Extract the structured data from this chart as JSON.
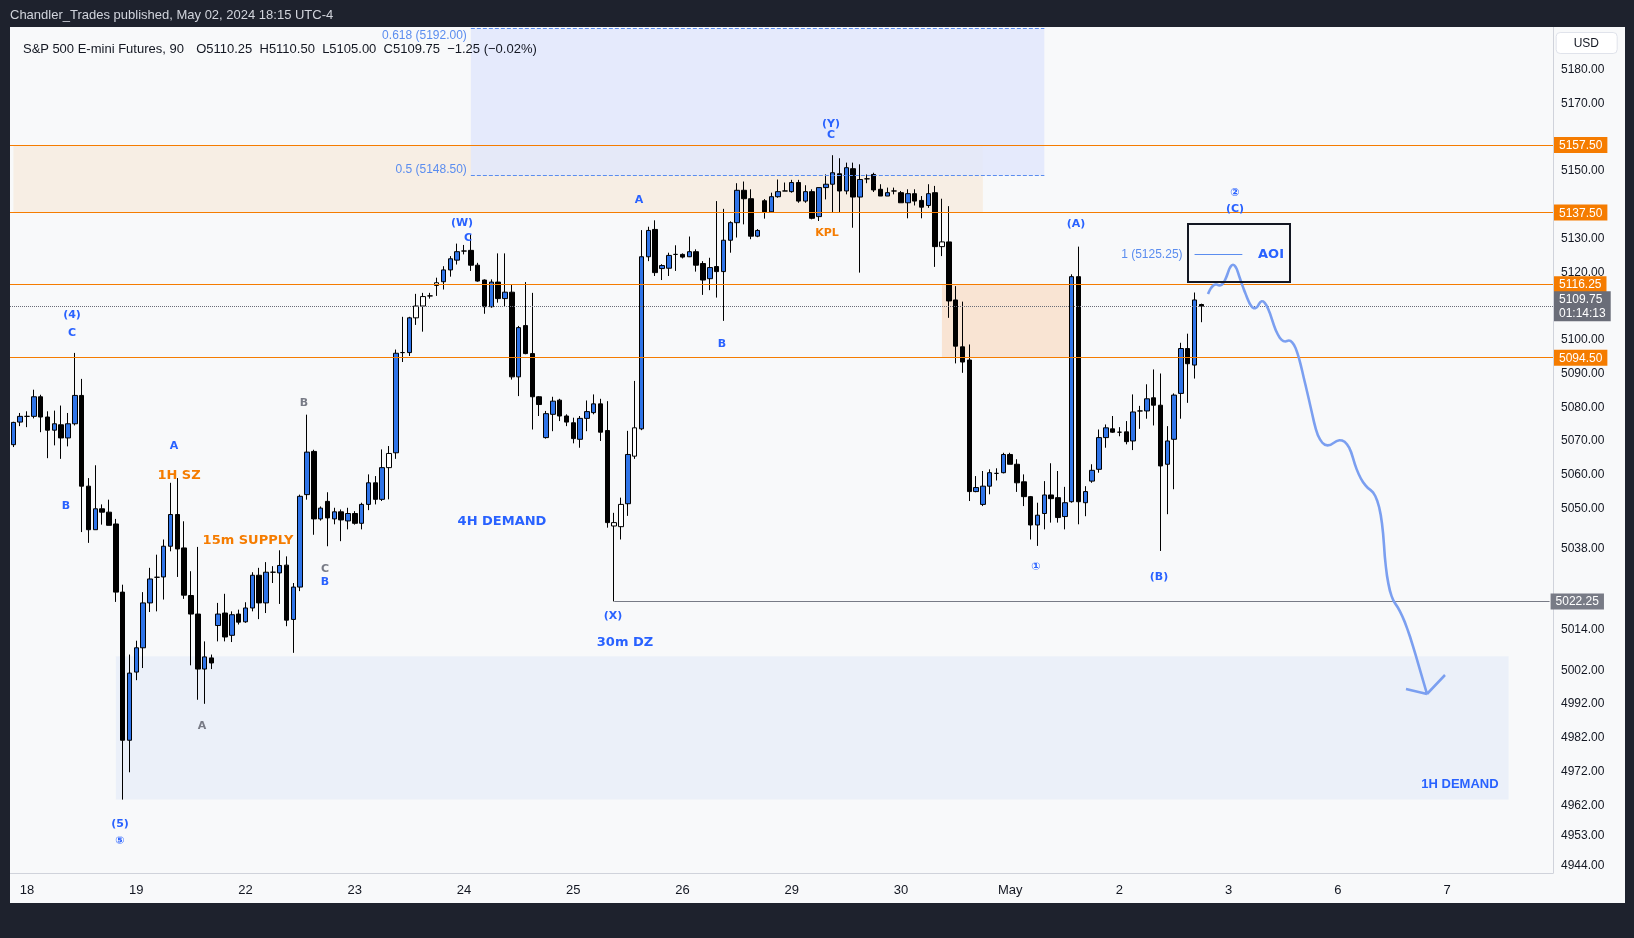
{
  "chart_data": {
    "type": "candlestick",
    "title": "S&P 500 E-mini Futures, 90",
    "subtitle": "O5110.25  H5110.50  L5105.00  C5109.75  −1.25 (−0.02%)",
    "ylabel": "USD",
    "annotations": [
      "Chandler_Trades published, May 02, 2024 18:15 UTC-4",
      "(4)",
      "C",
      "B",
      "A",
      "1H SZ",
      "15m SUPPLY",
      "B",
      "C",
      "B",
      "A",
      "(5)",
      "⑤",
      "(W)",
      "C",
      "4H DEMAND",
      "(X)",
      "30m DZ",
      "A",
      "B",
      "(Y)",
      "C",
      "KPL",
      "(A)",
      "①",
      "(B)",
      "②",
      "(C)",
      "AOI"
    ],
    "categories": [
      null,
      null,
      "18",
      null,
      null,
      null,
      null,
      null,
      null,
      null,
      null,
      null,
      null,
      null,
      null,
      null,
      null,
      null,
      "19",
      null,
      null,
      null,
      null,
      null,
      null,
      null,
      null,
      null,
      null,
      null,
      null,
      null,
      null,
      null,
      "22",
      null,
      null,
      null,
      null,
      null,
      null,
      null,
      null,
      null,
      null,
      null,
      null,
      null,
      null,
      null,
      "23",
      null,
      null,
      null,
      null,
      null,
      null,
      null,
      null,
      null,
      null,
      null,
      null,
      null,
      null,
      null,
      "24",
      null,
      null,
      null,
      null,
      null,
      null,
      null,
      null,
      null,
      null,
      null,
      null,
      null,
      null,
      null,
      "25",
      null,
      null,
      null,
      null,
      null,
      null,
      null,
      null,
      null,
      null,
      null,
      null,
      null,
      null,
      null,
      "26",
      null,
      null,
      null,
      null,
      null,
      null,
      null,
      null,
      null,
      null,
      null,
      null,
      null,
      null,
      null,
      "29",
      null,
      null,
      null,
      null,
      null,
      null,
      null,
      null,
      null,
      null,
      null,
      null,
      null,
      null,
      null,
      "30",
      null,
      null,
      null,
      null,
      null,
      null,
      null,
      null,
      null,
      null,
      null,
      null,
      null,
      null,
      null,
      "May",
      null,
      null,
      null,
      null,
      null,
      null,
      null,
      null,
      null,
      null,
      null,
      null,
      null,
      null,
      null,
      "2",
      null,
      null,
      null,
      null,
      null,
      null,
      null,
      null,
      null,
      null,
      null,
      null,
      null,
      null,
      null,
      "3",
      null,
      null,
      null,
      null,
      null,
      null,
      null,
      null,
      null,
      null,
      null,
      null,
      null,
      null,
      null,
      "6",
      null,
      null,
      null,
      null,
      null,
      null,
      null,
      null,
      null,
      null,
      null,
      null,
      null,
      null,
      null,
      "7",
      null,
      null,
      null,
      null,
      null,
      null,
      null,
      null,
      null,
      null,
      null,
      null,
      null,
      null,
      null
    ],
    "ylim": [
      4941.75,
      5192.5
    ],
    "yticks": [
      {
        "value": 4944,
        "label": "4944.00"
      },
      {
        "value": 4953,
        "label": "4953.00"
      },
      {
        "value": 4962,
        "label": "4962.00"
      },
      {
        "value": 4972,
        "label": "4972.00"
      },
      {
        "value": 4982,
        "label": "4982.00"
      },
      {
        "value": 4992,
        "label": "4992.00"
      },
      {
        "value": 5002,
        "label": "5002.00"
      },
      {
        "value": 5014,
        "label": "5014.00"
      },
      {
        "value": 5038,
        "label": "5038.00"
      },
      {
        "value": 5050,
        "label": "5050.00"
      },
      {
        "value": 5060,
        "label": "5060.00"
      },
      {
        "value": 5070,
        "label": "5070.00"
      },
      {
        "value": 5080,
        "label": "5080.00"
      },
      {
        "value": 5090,
        "label": "5090.00"
      },
      {
        "value": 5100,
        "label": "5100.00"
      },
      {
        "value": 5120,
        "label": "5120.00"
      },
      {
        "value": 5130,
        "label": "5130.00"
      },
      {
        "value": 5150,
        "label": "5150.00"
      },
      {
        "value": 5170,
        "label": "5170.00"
      },
      {
        "value": 5180,
        "label": "5180.00"
      }
    ],
    "bands": [
      {
        "axis": "y",
        "from": 4963.5,
        "to": 5006,
        "label": "1H DEMAND",
        "color": "#e9eef8"
      },
      {
        "axis": "y",
        "from": 5137.5,
        "to": 5157.5,
        "color": "#f7ecdf"
      },
      {
        "axis": "y",
        "from": 5148.5,
        "to": 5192,
        "color": "#e2e8fb"
      },
      {
        "axis": "y",
        "from": 5094.5,
        "to": 5116.25,
        "color": "#f9e1cb"
      }
    ],
    "ref_lines": [
      {
        "axis": "y",
        "value": 5192,
        "label": "0.618 (5192.00)",
        "color": "#5b8def",
        "line_style": "dashed"
      },
      {
        "axis": "y",
        "value": 5148.5,
        "label": "0.5 (5148.50)",
        "color": "#5b8def",
        "line_style": "dashed"
      },
      {
        "axis": "y",
        "value": 5125.25,
        "label": "1 (5125.25)",
        "color": "#5b8def",
        "line_style": "solid"
      },
      {
        "axis": "y",
        "value": 5157.5,
        "label": "5157.50",
        "color": "#f57c00",
        "line_style": "solid"
      },
      {
        "axis": "y",
        "value": 5137.5,
        "label": "5137.50",
        "color": "#f57c00",
        "line_style": "solid"
      },
      {
        "axis": "y",
        "value": 5116.25,
        "label": "5116.25",
        "color": "#f57c00",
        "line_style": "solid"
      },
      {
        "axis": "y",
        "value": 5094.5,
        "label": "5094.50",
        "color": "#f57c00",
        "line_style": "solid"
      },
      {
        "axis": "y",
        "value": 5109.75,
        "label": "5109.75\n01:14:13",
        "color": "#6a6d78",
        "line_style": "dotted"
      },
      {
        "axis": "y",
        "value": 5022.25,
        "label": "5022.25",
        "color": "#787b86",
        "line_style": "solid"
      }
    ],
    "series": [
      {
        "ohlc": [
          [
            5068.7,
            5075.5,
            5068,
            5075.3
          ],
          [
            5075.4,
            5078.1,
            5074.2,
            5077.1
          ],
          [
            5077.1,
            5078.6,
            5073.9,
            5077.1
          ],
          [
            5077.1,
            5085,
            5076.5,
            5082.9
          ],
          [
            5082.9,
            5083.5,
            5072.4,
            5076.9
          ],
          [
            5076.9,
            5078.6,
            5064.7,
            5073
          ],
          [
            5073,
            5078.8,
            5068.5,
            5074.9
          ],
          [
            5074.6,
            5080.3,
            5064.5,
            5070.7
          ],
          [
            5070.7,
            5078.1,
            5068.2,
            5074.9
          ],
          [
            5074.9,
            5095.9,
            5074.4,
            5083.3
          ],
          [
            5083.3,
            5088.2,
            5042.8,
            5056.4
          ],
          [
            5056.4,
            5058.8,
            5039.6,
            5043.5
          ],
          [
            5043.5,
            5062.6,
            5043.5,
            5049.7
          ],
          [
            5049.7,
            5051,
            5045,
            5048.7
          ],
          [
            5048.7,
            5052.4,
            5044.8,
            5044.8
          ],
          [
            5045.2,
            5046.7,
            5022.1,
            5025
          ],
          [
            5025,
            5027.2,
            4963.5,
            4981.1
          ],
          [
            4981.1,
            5006.5,
            4971.6,
            5001
          ],
          [
            5001.3,
            5010.6,
            4998.9,
            5008.5
          ],
          [
            5008.5,
            5025,
            5002.5,
            5021.8
          ],
          [
            5021.8,
            5032.2,
            5019.1,
            5028.9
          ],
          [
            5029.4,
            5036.1,
            5019.3,
            5029.4
          ],
          [
            5029.5,
            5040.6,
            5022.8,
            5038.6
          ],
          [
            5038.6,
            5057.4,
            5037.1,
            5048
          ],
          [
            5048,
            5058.8,
            5029.5,
            5037.8
          ],
          [
            5038.1,
            5046,
            5023,
            5024.1
          ],
          [
            5024,
            5031.2,
            5003.3,
            5018.5
          ],
          [
            5018.5,
            5038.4,
            4993.1,
            5002.2
          ],
          [
            5002.2,
            5010.4,
            4991.9,
            5005.8
          ],
          [
            5005.5,
            5006.5,
            5002.2,
            5004
          ],
          [
            5015.1,
            5021.8,
            5010.4,
            5018.5
          ],
          [
            5018.8,
            5024.5,
            5010.4,
            5011.7
          ],
          [
            5012.2,
            5019.3,
            5010.2,
            5018.3
          ],
          [
            5018.5,
            5019.8,
            5015.4,
            5016.1
          ],
          [
            5016.2,
            5022,
            5015.9,
            5020.3
          ],
          [
            5020.3,
            5030.9,
            5019.3,
            5030
          ],
          [
            5030,
            5032.2,
            5017,
            5021.8
          ],
          [
            5021.8,
            5033.9,
            5018.8,
            5030.9
          ],
          [
            5030.9,
            5032.7,
            5027.7,
            5030.9
          ],
          [
            5030.7,
            5037.4,
            5021.5,
            5032.9
          ],
          [
            5033,
            5035.6,
            5014.9,
            5016.7
          ],
          [
            5016.9,
            5027.7,
            5007,
            5026.5
          ],
          [
            5026.5,
            5053.9,
            5025.3,
            5053.4
          ],
          [
            5053.9,
            5077.6,
            5052.4,
            5066.5
          ],
          [
            5066.7,
            5067.2,
            5042,
            5046.7
          ],
          [
            5046.7,
            5050.4,
            5046.2,
            5049.9
          ],
          [
            5051.9,
            5054.6,
            5038.6,
            5047
          ],
          [
            5046.7,
            5050,
            5045.1,
            5048.8
          ],
          [
            5048.8,
            5049.5,
            5040.1,
            5046.4
          ],
          [
            5046.1,
            5050,
            5043.6,
            5048.3
          ],
          [
            5048.3,
            5049,
            5045,
            5045.4
          ],
          [
            5045.4,
            5051.5,
            5043.6,
            5051
          ],
          [
            5051,
            5059.9,
            5049.3,
            5057.4
          ],
          [
            5057.4,
            5059.4,
            5051,
            5052.5
          ],
          [
            5052.5,
            5067.3,
            5052,
            5061.9
          ],
          [
            5061.9,
            5068.3,
            5052.5,
            5066.1
          ],
          [
            5066.3,
            5096.9,
            5064.5,
            5095.8
          ],
          [
            5096,
            5106.6,
            5093.2,
            5096
          ],
          [
            5096,
            5106.6,
            5095,
            5106.3
          ],
          [
            5106.3,
            5113.4,
            5104.2,
            5109.8
          ],
          [
            5109.8,
            5113.7,
            5102.2,
            5112.6
          ],
          [
            5112.8,
            5113.7,
            5112,
            5112.8
          ],
          [
            5115.9,
            5118.2,
            5112.8,
            5116.7
          ],
          [
            5117,
            5121.6,
            5114.7,
            5120.5
          ],
          [
            5120.5,
            5124.6,
            5118.5,
            5123.8
          ],
          [
            5123.4,
            5128.3,
            5122.1,
            5125.9
          ],
          [
            5126.1,
            5127.9,
            5125.1,
            5126.1
          ],
          [
            5126.3,
            5131,
            5120.2,
            5121.9
          ],
          [
            5121.9,
            5122.6,
            5117,
            5117.2
          ],
          [
            5117.5,
            5117.7,
            5107.5,
            5109.6
          ],
          [
            5109.6,
            5117.7,
            5109.3,
            5116.9
          ],
          [
            5116.9,
            5125.4,
            5110.8,
            5112
          ],
          [
            5112,
            5125.4,
            5109.8,
            5113.9
          ],
          [
            5113.9,
            5116.2,
            5088,
            5088.8
          ],
          [
            5088.8,
            5103.9,
            5083.1,
            5103.4
          ],
          [
            5104,
            5116.9,
            5095.5,
            5095.7
          ],
          [
            5095.7,
            5113.7,
            5073.2,
            5082.9
          ],
          [
            5082.9,
            5083.1,
            5077.2,
            5080.6
          ],
          [
            5070.8,
            5078.7,
            5070.5,
            5077.9
          ],
          [
            5077.7,
            5082.9,
            5072.7,
            5081.6
          ],
          [
            5081.9,
            5082.3,
            5075.7,
            5077.2
          ],
          [
            5077.2,
            5077.7,
            5074.2,
            5075.4
          ],
          [
            5075.2,
            5076.7,
            5069.1,
            5070.5
          ],
          [
            5070.3,
            5077.2,
            5067.8,
            5076.5
          ],
          [
            5076.5,
            5081.8,
            5072.7,
            5078.5
          ],
          [
            5078.2,
            5083.6,
            5077.7,
            5080.8
          ],
          [
            5080.8,
            5082.3,
            5069.8,
            5072.4
          ],
          [
            5072.9,
            5081.6,
            5044.1,
            5045.6
          ],
          [
            5044.6,
            5048.5,
            5022.25,
            5045.6
          ],
          [
            5044.4,
            5053,
            5040.6,
            5051
          ],
          [
            5051.2,
            5072.8,
            5047.6,
            5065.8
          ],
          [
            5065.3,
            5087.6,
            5064.5,
            5073.7
          ],
          [
            5073.4,
            5132.3,
            5073,
            5124.4
          ],
          [
            5124.4,
            5133.3,
            5123.1,
            5132.2
          ],
          [
            5132.5,
            5135.2,
            5118.7,
            5119.7
          ],
          [
            5120.9,
            5122.2,
            5117.5,
            5121.8
          ],
          [
            5121,
            5125.6,
            5118.7,
            5124.8
          ],
          [
            5125.1,
            5127.8,
            5120.2,
            5125.1
          ],
          [
            5125.1,
            5125.4,
            5123.9,
            5124.3
          ],
          [
            5124.4,
            5130.4,
            5124.3,
            5125.9
          ],
          [
            5125.9,
            5126.6,
            5120,
            5121.9
          ],
          [
            5122.4,
            5123.1,
            5113.1,
            5117.5
          ],
          [
            5117.9,
            5124.1,
            5114.5,
            5121.2
          ],
          [
            5121.5,
            5140.9,
            5112.3,
            5120
          ],
          [
            5120,
            5138.6,
            5105.4,
            5129.3
          ],
          [
            5129.3,
            5134.9,
            5125.6,
            5134.5
          ],
          [
            5134.5,
            5146.2,
            5130.1,
            5144.1
          ],
          [
            5144.1,
            5146.7,
            5134,
            5141.6
          ],
          [
            5141.6,
            5144.4,
            5129.6,
            5130.5
          ],
          [
            5130.5,
            5132.6,
            5130.2,
            5132.2
          ],
          [
            5141,
            5141.5,
            5135.7,
            5137.7
          ],
          [
            5137.7,
            5143.4,
            5137.6,
            5142.2
          ],
          [
            5142.2,
            5147.3,
            5141.9,
            5143.7
          ],
          [
            5143.9,
            5146.4,
            5143.9,
            5143.9
          ],
          [
            5143.7,
            5147.2,
            5143.4,
            5146.4
          ],
          [
            5146.4,
            5147.2,
            5140.4,
            5140.9
          ],
          [
            5140.9,
            5145.6,
            5140.4,
            5143.7
          ],
          [
            5143.7,
            5144.4,
            5135.5,
            5135.8
          ],
          [
            5136.3,
            5144.9,
            5135,
            5144.9
          ],
          [
            5144.9,
            5148.8,
            5141.4,
            5145.9
          ],
          [
            5145.9,
            5154.5,
            5137.5,
            5149.3
          ],
          [
            5149,
            5153.6,
            5137.5,
            5143.9
          ],
          [
            5143.9,
            5152.3,
            5142.9,
            5150.8
          ],
          [
            5150.5,
            5152.3,
            5133,
            5142.1
          ],
          [
            5142.1,
            5151.8,
            5119.7,
            5147.3
          ],
          [
            5147.5,
            5148.8,
            5146.2,
            5147.5
          ],
          [
            5148.8,
            5149.3,
            5143.6,
            5144.2
          ],
          [
            5144.4,
            5145.9,
            5142.4,
            5142.4
          ],
          [
            5142.4,
            5144.9,
            5142.4,
            5143.4
          ],
          [
            5143.9,
            5144.9,
            5142.9,
            5143.9
          ],
          [
            5143.4,
            5143.9,
            5140.4,
            5140.4
          ],
          [
            5140.4,
            5144.4,
            5135.8,
            5143.1
          ],
          [
            5143.1,
            5144.4,
            5139.6,
            5140.9
          ],
          [
            5141.1,
            5142.4,
            5135.8,
            5139.1
          ],
          [
            5139.6,
            5145.9,
            5138.9,
            5143.1
          ],
          [
            5143.4,
            5145.4,
            5121.4,
            5127.4
          ],
          [
            5127.4,
            5141.6,
            5124.6,
            5128.8
          ],
          [
            5128.8,
            5139.4,
            5106.3,
            5111.3
          ],
          [
            5111.6,
            5115.7,
            5092.8,
            5097.9
          ],
          [
            5097.7,
            5111.1,
            5090,
            5093.2
          ],
          [
            5093.8,
            5098.4,
            5052,
            5054.8
          ],
          [
            5054.8,
            5059.4,
            5054.6,
            5056
          ],
          [
            5051,
            5060.9,
            5050.5,
            5056.4
          ],
          [
            5056.4,
            5061.4,
            5054,
            5060.4
          ],
          [
            5060.2,
            5061.7,
            5058.1,
            5060.2
          ],
          [
            5060.4,
            5066.3,
            5060.2,
            5065.8
          ],
          [
            5065.8,
            5066.3,
            5062.9,
            5062.9
          ],
          [
            5062.9,
            5064.4,
            5054.7,
            5057.4
          ],
          [
            5057.7,
            5059.9,
            5050.5,
            5053.3
          ],
          [
            5053.3,
            5053.5,
            5040.6,
            5044.9
          ],
          [
            5044.9,
            5051.5,
            5038.7,
            5047.8
          ],
          [
            5048.3,
            5057.9,
            5043.6,
            5053.8
          ],
          [
            5053.8,
            5063.2,
            5045.6,
            5052.7
          ],
          [
            5053,
            5060.9,
            5045.6,
            5047.1
          ],
          [
            5047.4,
            5056.2,
            5043.6,
            5051.5
          ],
          [
            5051.8,
            5119.2,
            5051.5,
            5118.5
          ],
          [
            5118.5,
            5127.4,
            5045.1,
            5051.8
          ],
          [
            5051.5,
            5056.4,
            5047.5,
            5054.8
          ],
          [
            5057.9,
            5062.9,
            5057.4,
            5061.1
          ],
          [
            5061.4,
            5073.2,
            5060.4,
            5070.8
          ],
          [
            5070.8,
            5074.7,
            5067.8,
            5073.7
          ],
          [
            5073.4,
            5077.2,
            5072.2,
            5072.4
          ],
          [
            5072.4,
            5073.9,
            5071.2,
            5072.4
          ],
          [
            5072.5,
            5075.7,
            5068.8,
            5069.6
          ],
          [
            5069.8,
            5083.6,
            5067.1,
            5078.4
          ],
          [
            5078.7,
            5080.2,
            5073.4,
            5078.7
          ],
          [
            5078.7,
            5086.6,
            5076.4,
            5082.3
          ],
          [
            5082.6,
            5091,
            5074.4,
            5080.4
          ],
          [
            5080.4,
            5089.8,
            5037.2,
            5062.4
          ],
          [
            5062.9,
            5074.2,
            5048.1,
            5069.8
          ],
          [
            5070.3,
            5083.9,
            5055.5,
            5083.4
          ],
          [
            5083.9,
            5098.9,
            5076.4,
            5097.2
          ],
          [
            5097.2,
            5101.6,
            5081.1,
            5092.7
          ],
          [
            5092.3,
            5113.8,
            5088.3,
            5111.6
          ],
          [
            5110.25,
            5110.5,
            5105,
            5109.75
          ],
          null,
          null,
          null,
          null,
          null,
          null,
          null,
          null,
          null,
          null,
          null,
          null,
          null,
          null,
          null,
          null,
          null,
          null,
          null,
          null,
          null,
          null,
          null,
          null,
          null,
          null,
          null,
          null,
          null,
          null,
          null,
          null,
          null,
          null,
          null,
          null,
          null,
          null,
          null,
          null,
          null,
          null,
          null,
          null,
          null,
          null,
          null,
          null,
          null,
          null,
          null
        ],
        "colors": [
          "#2f74e8",
          "#2f74e8",
          "#000000",
          "#2f74e8",
          "#000000",
          "#000000",
          "#2f74e8",
          "#000000",
          "#2f74e8",
          "#2f74e8",
          "#000000",
          "#000000",
          "#2f74e8",
          "#000000",
          "#000000",
          "#000000",
          "#000000",
          "#2f74e8",
          "#2f74e8",
          "#2f74e8",
          "#2f74e8",
          "#000000",
          "#2f74e8",
          "#2f74e8",
          "#000000",
          "#000000",
          "#000000",
          "#000000",
          "#2f74e8",
          "#000000",
          "#2f74e8",
          "#000000",
          "#2f74e8",
          "#000000",
          "#2f74e8",
          "#2f74e8",
          "#000000",
          "#2f74e8",
          "#000000",
          "#2f74e8",
          "#000000",
          "#2f74e8",
          "#2f74e8",
          "#2f74e8",
          "#000000",
          "#2f74e8",
          "#000000",
          "#2f74e8",
          "#000000",
          "#2f74e8",
          "#000000",
          "#2f74e8",
          "#2f74e8",
          "#000000",
          "#2f74e8",
          "#ffffff",
          "#2f74e8",
          "#000000",
          "#2f74e8",
          "#ffffff",
          "#ffffff",
          "#000000",
          "#ffffff",
          "#2f74e8",
          "#2f74e8",
          "#2f74e8",
          "#000000",
          "#000000",
          "#000000",
          "#000000",
          "#2f74e8",
          "#000000",
          "#2f74e8",
          "#000000",
          "#2f74e8",
          "#000000",
          "#000000",
          "#000000",
          "#2f74e8",
          "#2f74e8",
          "#000000",
          "#000000",
          "#000000",
          "#2f74e8",
          "#2f74e8",
          "#2f74e8",
          "#000000",
          "#000000",
          "#ffffff",
          "#ffffff",
          "#2f74e8",
          "#ffffff",
          "#2f74e8",
          "#2f74e8",
          "#000000",
          "#2f74e8",
          "#2f74e8",
          "#000000",
          "#000000",
          "#2f74e8",
          "#000000",
          "#000000",
          "#2f74e8",
          "#000000",
          "#2f74e8",
          "#2f74e8",
          "#2f74e8",
          "#000000",
          "#000000",
          "#2f74e8",
          "#000000",
          "#2f74e8",
          "#2f74e8",
          "#000000",
          "#2f74e8",
          "#000000",
          "#2f74e8",
          "#000000",
          "#2f74e8",
          "#2f74e8",
          "#2f74e8",
          "#000000",
          "#2f74e8",
          "#000000",
          "#2f74e8",
          "#000000",
          "#000000",
          "#000000",
          "#2f74e8",
          "#000000",
          "#000000",
          "#2f74e8",
          "#000000",
          "#000000",
          "#2f74e8",
          "#000000",
          "#ffffff",
          "#000000",
          "#000000",
          "#000000",
          "#000000",
          "#2f74e8",
          "#2f74e8",
          "#2f74e8",
          "#000000",
          "#2f74e8",
          "#000000",
          "#000000",
          "#000000",
          "#000000",
          "#2f74e8",
          "#2f74e8",
          "#000000",
          "#000000",
          "#2f74e8",
          "#2f74e8",
          "#000000",
          "#2f74e8",
          "#2f74e8",
          "#2f74e8",
          "#2f74e8",
          "#000000",
          "#000000",
          "#000000",
          "#2f74e8",
          "#000000",
          "#2f74e8",
          "#000000",
          "#000000",
          "#2f74e8",
          "#2f74e8",
          "#2f74e8",
          "#000000",
          "#2f74e8",
          "#000000",
          null,
          null,
          null,
          null,
          null,
          null,
          null,
          null,
          null,
          null,
          null,
          null,
          null,
          null,
          null,
          null,
          null,
          null,
          null,
          null,
          null,
          null,
          null,
          null,
          null,
          null,
          null,
          null,
          null,
          null,
          null,
          null,
          null,
          null,
          null,
          null,
          null,
          null,
          null,
          null,
          null,
          null,
          null,
          null,
          null,
          null,
          null,
          null,
          null,
          null,
          null
        ]
      }
    ]
  }
}
